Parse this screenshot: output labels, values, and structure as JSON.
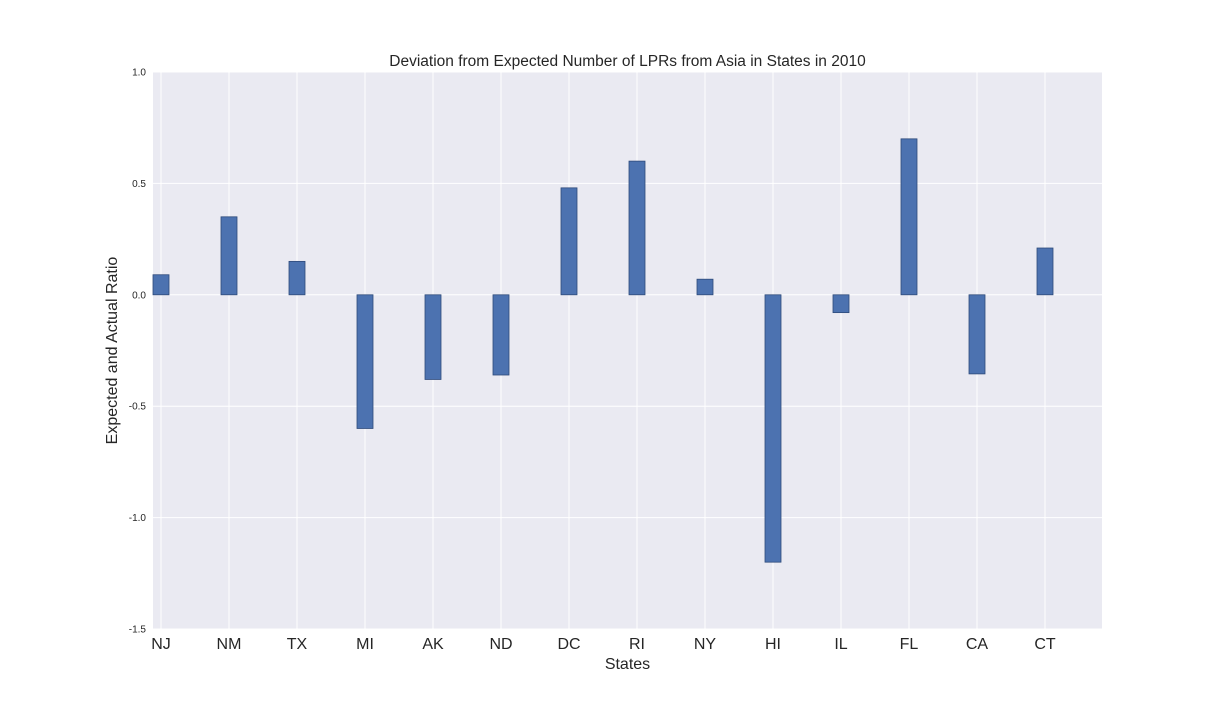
{
  "chart_data": {
    "type": "bar",
    "title": "Deviation from Expected Number of LPRs from Asia in States in 2010",
    "xlabel": "States",
    "ylabel": "Expected and Actual Ratio",
    "categories": [
      "NJ",
      "NM",
      "TX",
      "MI",
      "AK",
      "ND",
      "DC",
      "RI",
      "NY",
      "HI",
      "IL",
      "FL",
      "CA",
      "CT"
    ],
    "values": [
      0.09,
      0.35,
      0.15,
      -0.6,
      -0.38,
      -0.36,
      0.48,
      0.6,
      0.07,
      -1.2,
      -0.08,
      0.7,
      -0.355,
      0.21
    ],
    "ylim": [
      -1.5,
      1.0
    ],
    "yticks": [
      "1.0",
      "0.5",
      "0.0",
      "-0.5",
      "-1.0",
      "-1.5"
    ],
    "grid": true,
    "colors": {
      "bar": "#4c72b0",
      "bar_edge": "#2e4a7a",
      "plot_background": "#eaeaf2",
      "grid": "#ffffff"
    }
  }
}
